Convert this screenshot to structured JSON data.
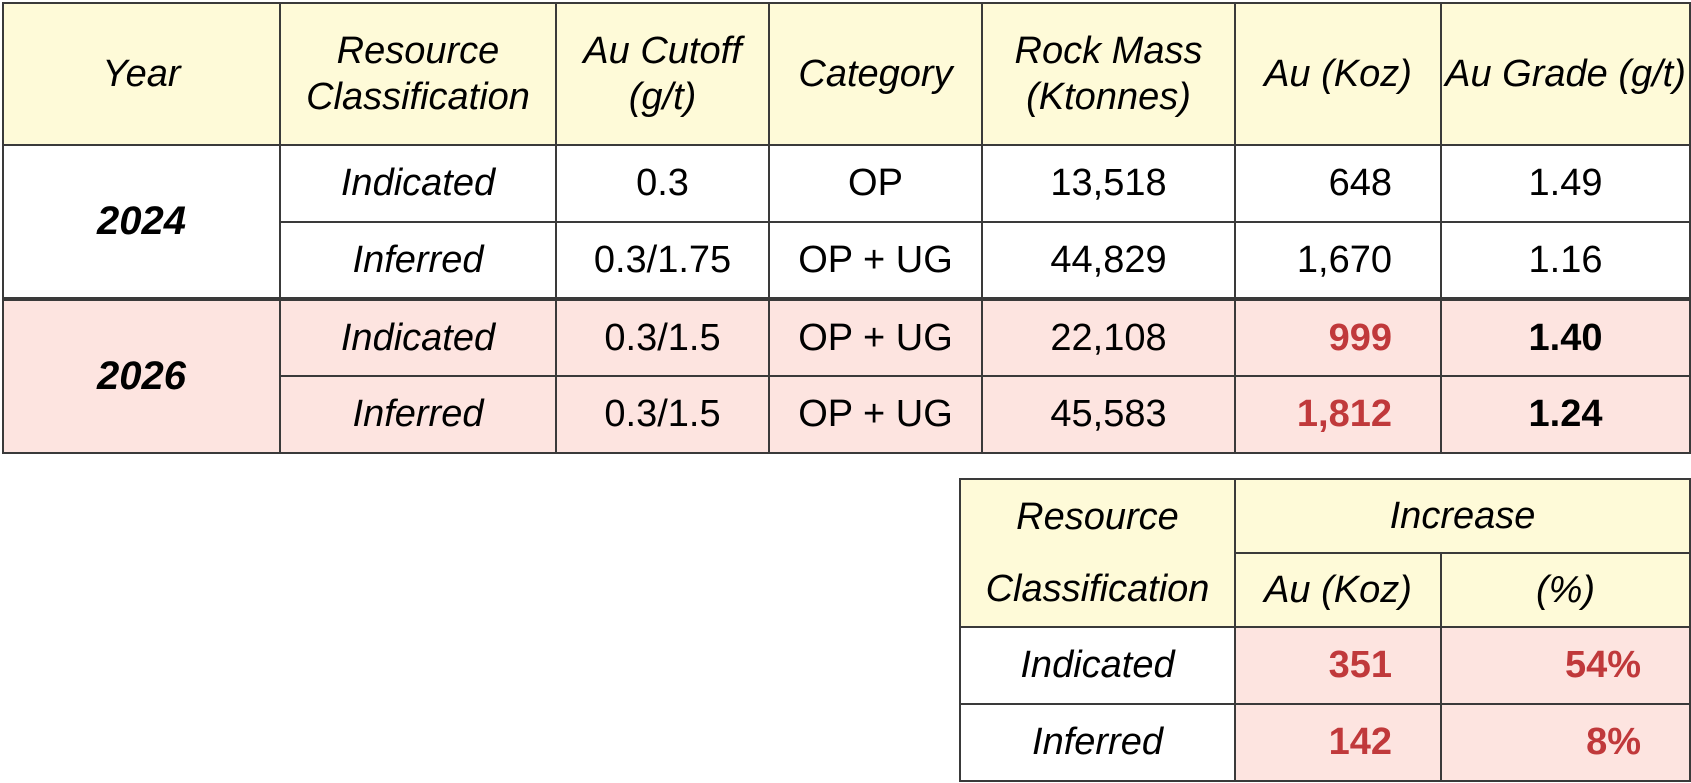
{
  "main_table": {
    "headers": [
      "Year",
      "Resource Classification",
      "Au Cutoff (g/t)",
      "Category",
      "Rock Mass (Ktonnes)",
      "Au (Koz)",
      "Au Grade (g/t)"
    ],
    "groups": [
      {
        "year": "2024",
        "rows": [
          {
            "classification": "Indicated",
            "cutoff": "0.3",
            "category": "OP",
            "rock_mass": "13,518",
            "au": "648",
            "grade": "1.49"
          },
          {
            "classification": "Inferred",
            "cutoff": "0.3/1.75",
            "category": "OP + UG",
            "rock_mass": "44,829",
            "au": "1,670",
            "grade": "1.16"
          }
        ]
      },
      {
        "year": "2026",
        "rows": [
          {
            "classification": "Indicated",
            "cutoff": "0.3/1.5",
            "category": "OP + UG",
            "rock_mass": "22,108",
            "au": "999",
            "grade": "1.40"
          },
          {
            "classification": "Inferred",
            "cutoff": "0.3/1.5",
            "category": "OP + UG",
            "rock_mass": "45,583",
            "au": "1,812",
            "grade": "1.24"
          }
        ]
      }
    ]
  },
  "increase_table": {
    "header_classification": "Resource Classification",
    "header_increase": "Increase",
    "header_au": "Au (Koz)",
    "header_pct": "(%)",
    "rows": [
      {
        "classification": "Indicated",
        "au": "351",
        "pct": "54%"
      },
      {
        "classification": "Inferred",
        "au": "142",
        "pct": "8%"
      }
    ]
  },
  "colors": {
    "header_bg": "#fefad8",
    "highlight_bg": "#fde4e0",
    "highlight_text": "#c0393b",
    "border": "#3a3a3a"
  }
}
